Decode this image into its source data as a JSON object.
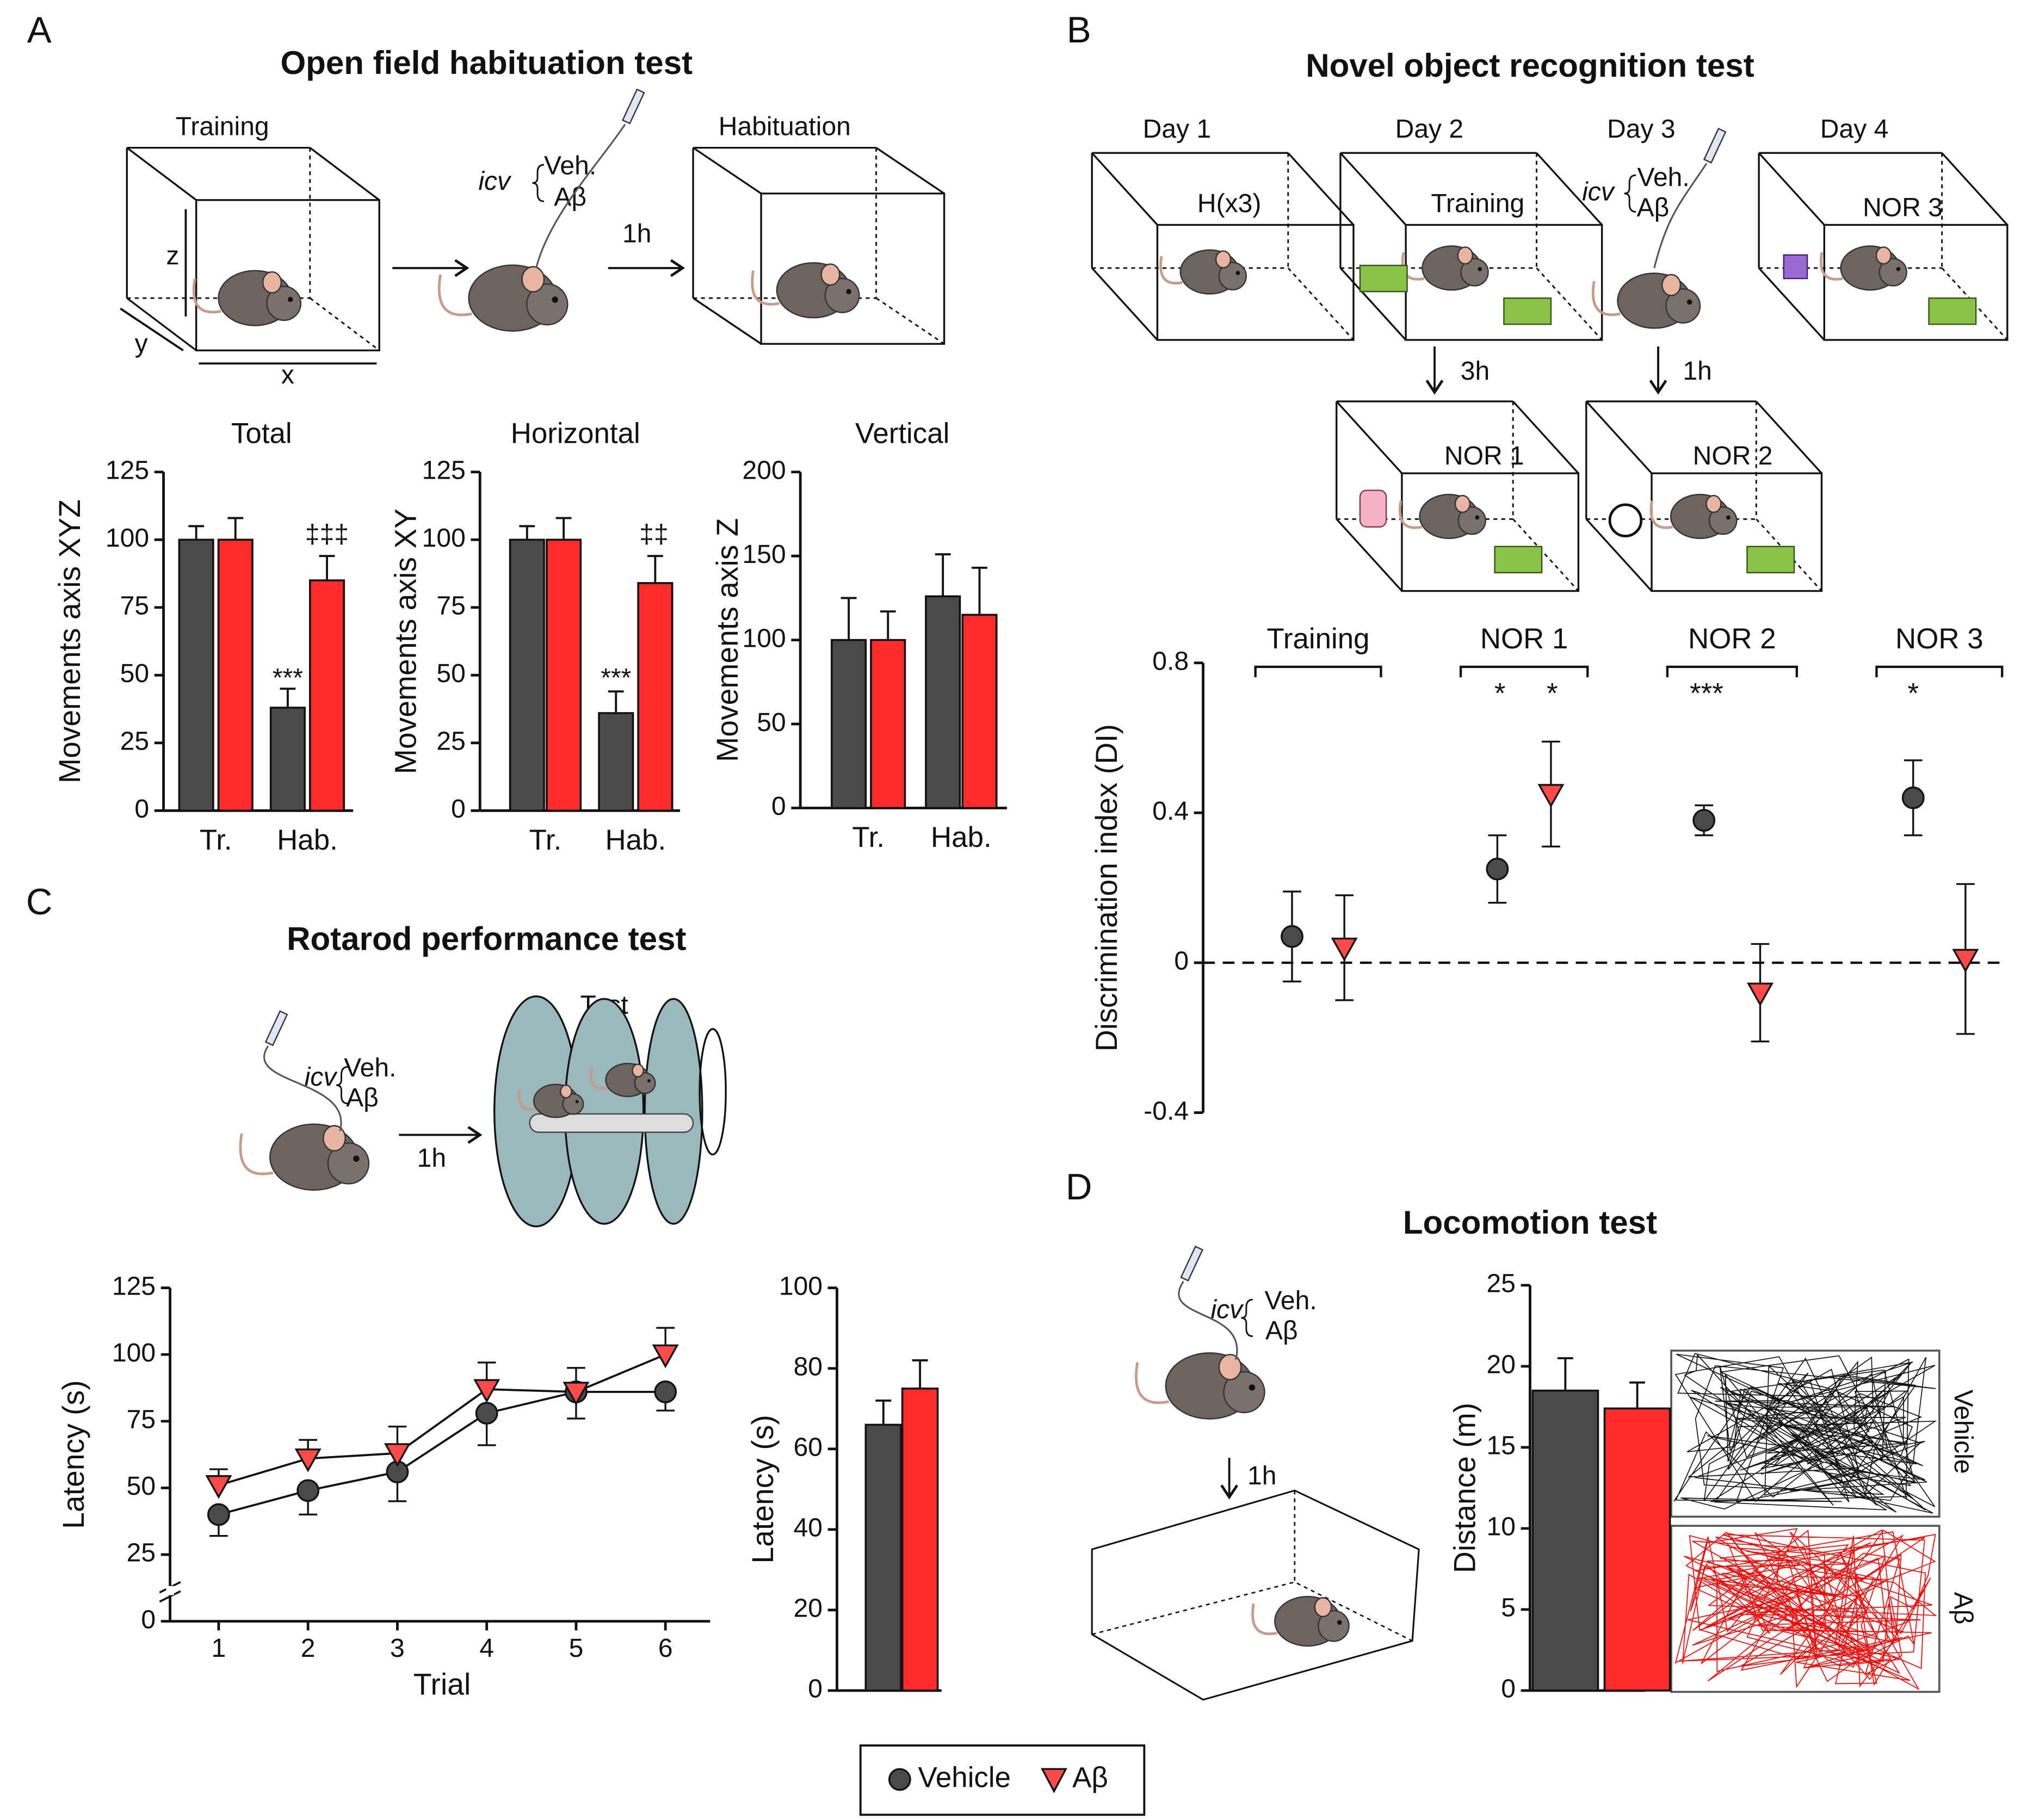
{
  "figure": {
    "panels": [
      {
        "label": "A",
        "title": "Open field habituation test",
        "texts": [
          "Training",
          "icv",
          "Veh.",
          "Aβ",
          "1h",
          "Habituation",
          "x",
          "y",
          "z"
        ]
      },
      {
        "label": "B",
        "title": "Novel object recognition test",
        "texts": [
          "Day 1",
          "Day 2",
          "Day 3",
          "Day 4",
          "H(x3)",
          "Training",
          "icv",
          "Veh.",
          "Aβ",
          "NOR 3",
          "3h",
          "1h",
          "NOR 1",
          "NOR 2"
        ]
      },
      {
        "label": "C",
        "title": "Rotarod performance test",
        "texts": [
          "icv",
          "Veh.",
          "Aβ",
          "1h",
          "Test"
        ]
      },
      {
        "label": "D",
        "title": "Locomotion test",
        "texts": [
          "icv",
          "Veh.",
          "Aβ",
          "1h",
          "Vehicle",
          "Aβ"
        ]
      }
    ]
  },
  "chart_data": [
    {
      "type": "bar",
      "title": "Total",
      "y_label": "Movements axis XYZ",
      "categories": [
        "Tr.",
        "Hab."
      ],
      "series": [
        {
          "color": "#4a4a4a",
          "values": [
            100,
            38
          ],
          "errors": [
            5,
            7
          ]
        },
        {
          "color": "#ff2a2a",
          "values": [
            100,
            85
          ],
          "errors": [
            8,
            9
          ]
        }
      ],
      "ylim": [
        0,
        125
      ],
      "yticks": [
        0,
        25,
        50,
        75,
        100,
        125
      ],
      "annotations": [
        "***",
        "‡‡‡"
      ]
    },
    {
      "type": "bar",
      "title": "Horizontal",
      "y_label": "Movements axis XY",
      "categories": [
        "Tr.",
        "Hab."
      ],
      "series": [
        {
          "color": "#4a4a4a",
          "values": [
            100,
            36
          ],
          "errors": [
            5,
            8
          ]
        },
        {
          "color": "#ff2a2a",
          "values": [
            100,
            84
          ],
          "errors": [
            8,
            10
          ]
        }
      ],
      "ylim": [
        0,
        125
      ],
      "yticks": [
        0,
        25,
        50,
        75,
        100,
        125
      ],
      "annotations": [
        "***",
        "‡‡"
      ]
    },
    {
      "type": "bar",
      "title": "Vertical",
      "y_label": "Movements axis Z",
      "categories": [
        "Tr.",
        "Hab."
      ],
      "series": [
        {
          "color": "#4a4a4a",
          "values": [
            100,
            126
          ],
          "errors": [
            25,
            25
          ]
        },
        {
          "color": "#ff2a2a",
          "values": [
            100,
            115
          ],
          "errors": [
            17,
            28
          ]
        }
      ],
      "ylim": [
        0,
        200
      ],
      "yticks": [
        0,
        50,
        100,
        150,
        200
      ]
    },
    {
      "type": "dot",
      "y_label": "Discrimination index (DI)",
      "categories": [
        "Training",
        "NOR 1",
        "NOR 2",
        "NOR 3"
      ],
      "series": [
        {
          "name": "Vehicle",
          "color": "#4a4a4a",
          "values": [
            0.07,
            0.25,
            0.38,
            0.44
          ],
          "errors": [
            0.12,
            0.09,
            0.04,
            0.1
          ]
        },
        {
          "name": "Aβ",
          "color": "#ff4a4a",
          "values": [
            0.04,
            0.45,
            -0.08,
            0.01
          ],
          "errors": [
            0.14,
            0.14,
            0.13,
            0.2
          ]
        }
      ],
      "ylim": [
        -0.4,
        0.8
      ],
      "yticks": [
        -0.4,
        0,
        0.4,
        0.8
      ],
      "annotations": [
        "*",
        "*",
        "***",
        "*"
      ]
    },
    {
      "type": "line",
      "x_label": "Trial",
      "y_label": "Latency (s)",
      "x": [
        1,
        2,
        3,
        4,
        5,
        6
      ],
      "series": [
        {
          "color": "#4a4a4a",
          "values": [
            40,
            49,
            56,
            78,
            86,
            86
          ],
          "errors": [
            8,
            9,
            11,
            12,
            10,
            7
          ]
        },
        {
          "color": "#ff4a4a",
          "values": [
            51,
            61,
            63,
            87,
            86,
            100
          ],
          "errors": [
            6,
            7,
            10,
            10,
            9,
            10
          ]
        }
      ],
      "xlim": [
        0.5,
        6.5
      ],
      "xticks": [
        1,
        2,
        3,
        4,
        5,
        6
      ],
      "ylim": [
        0,
        125
      ],
      "yticks": [
        0,
        25,
        50,
        75,
        100,
        125
      ]
    },
    {
      "type": "bar",
      "y_label": "Latency (s)",
      "series": [
        {
          "color": "#4a4a4a",
          "values": [
            66
          ],
          "errors": [
            6
          ]
        },
        {
          "color": "#ff2a2a",
          "values": [
            75
          ],
          "errors": [
            7
          ]
        }
      ],
      "ylim": [
        0,
        100
      ],
      "yticks": [
        0,
        20,
        40,
        60,
        80,
        100
      ]
    },
    {
      "type": "bar",
      "y_label": "Distance (m)",
      "series": [
        {
          "color": "#4a4a4a",
          "values": [
            18.5
          ],
          "errors": [
            2
          ]
        },
        {
          "color": "#ff2a2a",
          "values": [
            17.4
          ],
          "errors": [
            1.6
          ]
        }
      ],
      "ylim": [
        0,
        25
      ],
      "yticks": [
        0,
        5,
        10,
        15,
        20,
        25
      ]
    }
  ]
}
